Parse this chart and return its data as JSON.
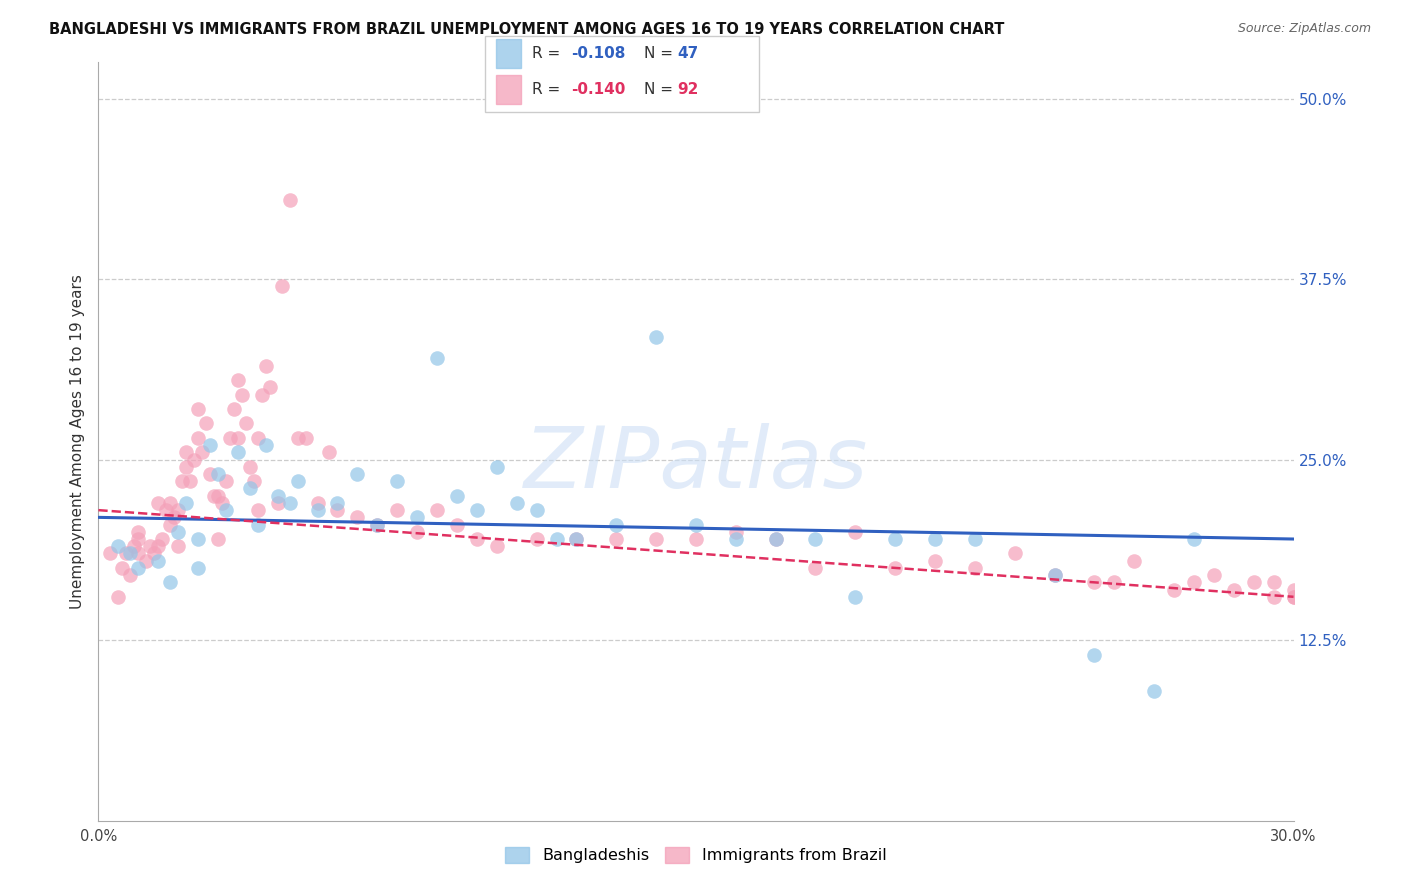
{
  "title": "BANGLADESHI VS IMMIGRANTS FROM BRAZIL UNEMPLOYMENT AMONG AGES 16 TO 19 YEARS CORRELATION CHART",
  "source": "Source: ZipAtlas.com",
  "ylabel": "Unemployment Among Ages 16 to 19 years",
  "blue_color": "#92c5e8",
  "pink_color": "#f4a0b8",
  "blue_line_color": "#3060c0",
  "pink_line_color": "#e03060",
  "watermark_color": "#ddeeff",
  "xmin": 0.0,
  "xmax": 0.3,
  "ymin": 0.0,
  "ymax": 0.525,
  "ytick_vals": [
    0.125,
    0.25,
    0.375,
    0.5
  ],
  "ytick_labels": [
    "12.5%",
    "25.0%",
    "37.5%",
    "50.0%"
  ],
  "blue_R": "-0.108",
  "blue_N": "47",
  "pink_R": "-0.140",
  "pink_N": "92",
  "blue_scatter_x": [
    0.005,
    0.008,
    0.01,
    0.015,
    0.018,
    0.02,
    0.022,
    0.025,
    0.025,
    0.028,
    0.03,
    0.032,
    0.035,
    0.038,
    0.04,
    0.042,
    0.045,
    0.048,
    0.05,
    0.055,
    0.06,
    0.065,
    0.07,
    0.075,
    0.08,
    0.085,
    0.09,
    0.095,
    0.1,
    0.105,
    0.11,
    0.115,
    0.12,
    0.13,
    0.14,
    0.15,
    0.16,
    0.17,
    0.18,
    0.19,
    0.2,
    0.21,
    0.22,
    0.24,
    0.25,
    0.265,
    0.275
  ],
  "blue_scatter_y": [
    0.19,
    0.185,
    0.175,
    0.18,
    0.165,
    0.2,
    0.22,
    0.195,
    0.175,
    0.26,
    0.24,
    0.215,
    0.255,
    0.23,
    0.205,
    0.26,
    0.225,
    0.22,
    0.235,
    0.215,
    0.22,
    0.24,
    0.205,
    0.235,
    0.21,
    0.32,
    0.225,
    0.215,
    0.245,
    0.22,
    0.215,
    0.195,
    0.195,
    0.205,
    0.335,
    0.205,
    0.195,
    0.195,
    0.195,
    0.155,
    0.195,
    0.195,
    0.195,
    0.17,
    0.115,
    0.09,
    0.195
  ],
  "pink_scatter_x": [
    0.003,
    0.005,
    0.006,
    0.007,
    0.008,
    0.009,
    0.01,
    0.01,
    0.01,
    0.012,
    0.013,
    0.014,
    0.015,
    0.015,
    0.016,
    0.017,
    0.018,
    0.018,
    0.019,
    0.02,
    0.02,
    0.021,
    0.022,
    0.022,
    0.023,
    0.024,
    0.025,
    0.025,
    0.026,
    0.027,
    0.028,
    0.029,
    0.03,
    0.03,
    0.031,
    0.032,
    0.033,
    0.034,
    0.035,
    0.035,
    0.036,
    0.037,
    0.038,
    0.039,
    0.04,
    0.04,
    0.041,
    0.042,
    0.043,
    0.045,
    0.046,
    0.048,
    0.05,
    0.052,
    0.055,
    0.058,
    0.06,
    0.065,
    0.07,
    0.075,
    0.08,
    0.085,
    0.09,
    0.095,
    0.1,
    0.11,
    0.12,
    0.13,
    0.14,
    0.15,
    0.16,
    0.17,
    0.18,
    0.19,
    0.2,
    0.21,
    0.22,
    0.23,
    0.24,
    0.25,
    0.255,
    0.26,
    0.27,
    0.275,
    0.28,
    0.285,
    0.29,
    0.295,
    0.295,
    0.3,
    0.3,
    0.3
  ],
  "pink_scatter_y": [
    0.185,
    0.155,
    0.175,
    0.185,
    0.17,
    0.19,
    0.195,
    0.185,
    0.2,
    0.18,
    0.19,
    0.185,
    0.19,
    0.22,
    0.195,
    0.215,
    0.22,
    0.205,
    0.21,
    0.19,
    0.215,
    0.235,
    0.245,
    0.255,
    0.235,
    0.25,
    0.265,
    0.285,
    0.255,
    0.275,
    0.24,
    0.225,
    0.195,
    0.225,
    0.22,
    0.235,
    0.265,
    0.285,
    0.305,
    0.265,
    0.295,
    0.275,
    0.245,
    0.235,
    0.265,
    0.215,
    0.295,
    0.315,
    0.3,
    0.22,
    0.37,
    0.43,
    0.265,
    0.265,
    0.22,
    0.255,
    0.215,
    0.21,
    0.205,
    0.215,
    0.2,
    0.215,
    0.205,
    0.195,
    0.19,
    0.195,
    0.195,
    0.195,
    0.195,
    0.195,
    0.2,
    0.195,
    0.175,
    0.2,
    0.175,
    0.18,
    0.175,
    0.185,
    0.17,
    0.165,
    0.165,
    0.18,
    0.16,
    0.165,
    0.17,
    0.16,
    0.165,
    0.155,
    0.165,
    0.155,
    0.16,
    0.155
  ]
}
